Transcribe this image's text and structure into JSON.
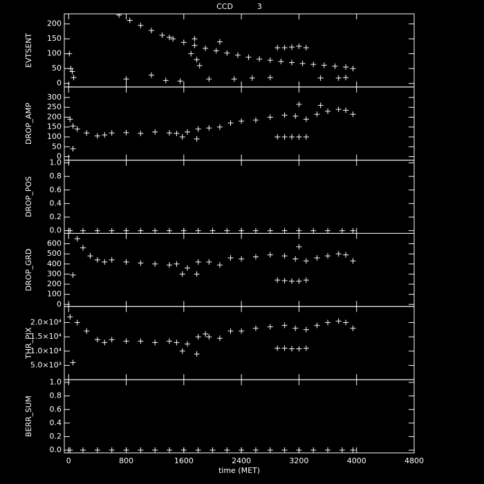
{
  "chart_data": [
    {
      "type": "scatter",
      "title": "CCD          3",
      "ylabel": "EVTSENT",
      "color": "#ffffff",
      "xlim": [
        -60,
        4800
      ],
      "ylim": [
        -12,
        234
      ],
      "yticks": [
        0,
        50,
        100,
        150,
        200
      ],
      "x": [
        10,
        30,
        50,
        70,
        700,
        850,
        1000,
        1150,
        1300,
        1450,
        1600,
        1750,
        1900,
        2050,
        2200,
        2350,
        2500,
        2650,
        2800,
        2950,
        3100,
        3250,
        3400,
        3550,
        3700,
        3850,
        3950,
        1700,
        1780,
        1820,
        2900,
        3000,
        3100,
        3200,
        3300,
        800,
        1150,
        1350,
        1550,
        1950,
        2300,
        2550,
        2800,
        3500,
        3750,
        3850,
        1400,
        1750,
        2100
      ],
      "values": [
        100,
        50,
        40,
        20,
        230,
        212,
        195,
        178,
        162,
        150,
        138,
        128,
        118,
        110,
        102,
        95,
        88,
        82,
        78,
        74,
        70,
        67,
        64,
        61,
        58,
        55,
        50,
        100,
        80,
        60,
        120,
        120,
        122,
        125,
        120,
        15,
        28,
        10,
        8,
        15,
        15,
        18,
        20,
        18,
        18,
        20,
        155,
        150,
        140
      ]
    },
    {
      "type": "scatter",
      "ylabel": "DROP_AMP",
      "color": "#ffffff",
      "xlim": [
        -60,
        4800
      ],
      "ylim": [
        -18,
        353
      ],
      "yticks": [
        0,
        50,
        100,
        150,
        200,
        250,
        300
      ],
      "x": [
        20,
        60,
        120,
        250,
        400,
        500,
        600,
        800,
        1000,
        1200,
        1400,
        1500,
        1580,
        1650,
        1800,
        1950,
        2100,
        2250,
        2400,
        2600,
        2800,
        3000,
        3150,
        3300,
        3450,
        3600,
        3750,
        3850,
        3950,
        2900,
        3000,
        3100,
        3200,
        3300,
        60,
        1780,
        3200,
        3500
      ],
      "values": [
        190,
        155,
        140,
        120,
        105,
        110,
        120,
        122,
        118,
        125,
        120,
        118,
        100,
        125,
        140,
        145,
        150,
        170,
        180,
        185,
        200,
        210,
        205,
        190,
        215,
        230,
        240,
        235,
        215,
        100,
        100,
        100,
        100,
        100,
        40,
        90,
        265,
        260
      ]
    },
    {
      "type": "scatter",
      "ylabel": "DROP_POS",
      "color": "#ffffff",
      "xlim": [
        -60,
        4800
      ],
      "ylim": [
        -0.04,
        1.04
      ],
      "yticks": [
        {
          "value": 0,
          "label": "0.0"
        },
        0.2,
        0.4,
        0.6,
        0.8,
        {
          "value": 1,
          "label": "1.0"
        }
      ],
      "x": [
        20,
        200,
        400,
        600,
        800,
        1000,
        1200,
        1400,
        1600,
        1800,
        2000,
        2200,
        2400,
        2600,
        2800,
        3000,
        3200,
        3400,
        3600,
        3800,
        3950
      ],
      "values": [
        0,
        0,
        0,
        0,
        0,
        0,
        0,
        0,
        0,
        0,
        0,
        0,
        0,
        0,
        0,
        0,
        0,
        0,
        0,
        0,
        0
      ]
    },
    {
      "type": "scatter",
      "ylabel": "DROP_GRD",
      "color": "#ffffff",
      "xlim": [
        -60,
        4800
      ],
      "ylim": [
        -21,
        703
      ],
      "yticks": [
        0,
        100,
        200,
        300,
        400,
        500,
        600
      ],
      "x": [
        120,
        200,
        300,
        400,
        500,
        600,
        800,
        1000,
        1200,
        1400,
        1500,
        1580,
        1650,
        1800,
        1950,
        2100,
        2250,
        2400,
        2600,
        2800,
        3000,
        3150,
        3300,
        3450,
        3600,
        3750,
        3850,
        3950,
        2900,
        3000,
        3100,
        3200,
        3300,
        60,
        1780,
        3200
      ],
      "values": [
        650,
        560,
        480,
        440,
        420,
        440,
        420,
        410,
        400,
        390,
        400,
        300,
        360,
        420,
        420,
        390,
        460,
        450,
        470,
        490,
        480,
        450,
        430,
        460,
        480,
        500,
        490,
        430,
        240,
        235,
        230,
        230,
        240,
        290,
        300,
        570
      ]
    },
    {
      "type": "scatter",
      "ylabel": "THR_PIX",
      "color": "#ffffff",
      "xlim": [
        -60,
        4800
      ],
      "ylim": [
        0,
        25600
      ],
      "yticks": [
        {
          "value": 5000,
          "label": "5.0×10³"
        },
        {
          "value": 10000,
          "label": "1.0×10⁴"
        },
        {
          "value": 15000,
          "label": "1.5×10⁴"
        },
        {
          "value": 20000,
          "label": "2.0×10⁴"
        }
      ],
      "x": [
        20,
        120,
        250,
        400,
        500,
        600,
        800,
        1000,
        1200,
        1400,
        1500,
        1580,
        1650,
        1800,
        1950,
        2100,
        2250,
        2400,
        2600,
        2800,
        3000,
        3150,
        3300,
        3450,
        3600,
        3750,
        3850,
        3950,
        2900,
        3000,
        3100,
        3200,
        3300,
        60,
        1780,
        1900
      ],
      "values": [
        22000,
        20000,
        17000,
        14000,
        13000,
        14000,
        13500,
        13500,
        13000,
        13500,
        13000,
        10000,
        12500,
        15000,
        15000,
        14500,
        17000,
        17000,
        18000,
        18500,
        19000,
        18000,
        17500,
        19000,
        20000,
        20500,
        20000,
        18000,
        11000,
        11000,
        10800,
        10800,
        11000,
        6000,
        9000,
        16000
      ]
    },
    {
      "type": "scatter",
      "ylabel": "BERR_SUM",
      "xlabel": "time (MET)",
      "color": "#ffffff",
      "xlim": [
        -60,
        4800
      ],
      "ylim": [
        -0.04,
        1.04
      ],
      "yticks": [
        {
          "value": 0,
          "label": "0.0"
        },
        0.2,
        0.4,
        0.6,
        0.8,
        {
          "value": 1,
          "label": "1.0"
        }
      ],
      "xticks": [
        0,
        800,
        1600,
        2400,
        3200,
        4000,
        4800
      ],
      "x": [
        20,
        200,
        400,
        600,
        800,
        1000,
        1200,
        1400,
        1600,
        1800,
        2000,
        2200,
        2400,
        2600,
        2800,
        3000,
        3200,
        3400,
        3600,
        3800,
        3950
      ],
      "values": [
        0,
        0,
        0,
        0,
        0,
        0,
        0,
        0,
        0,
        0,
        0,
        0,
        0,
        0,
        0,
        0,
        0,
        0,
        0,
        0,
        0
      ]
    }
  ]
}
